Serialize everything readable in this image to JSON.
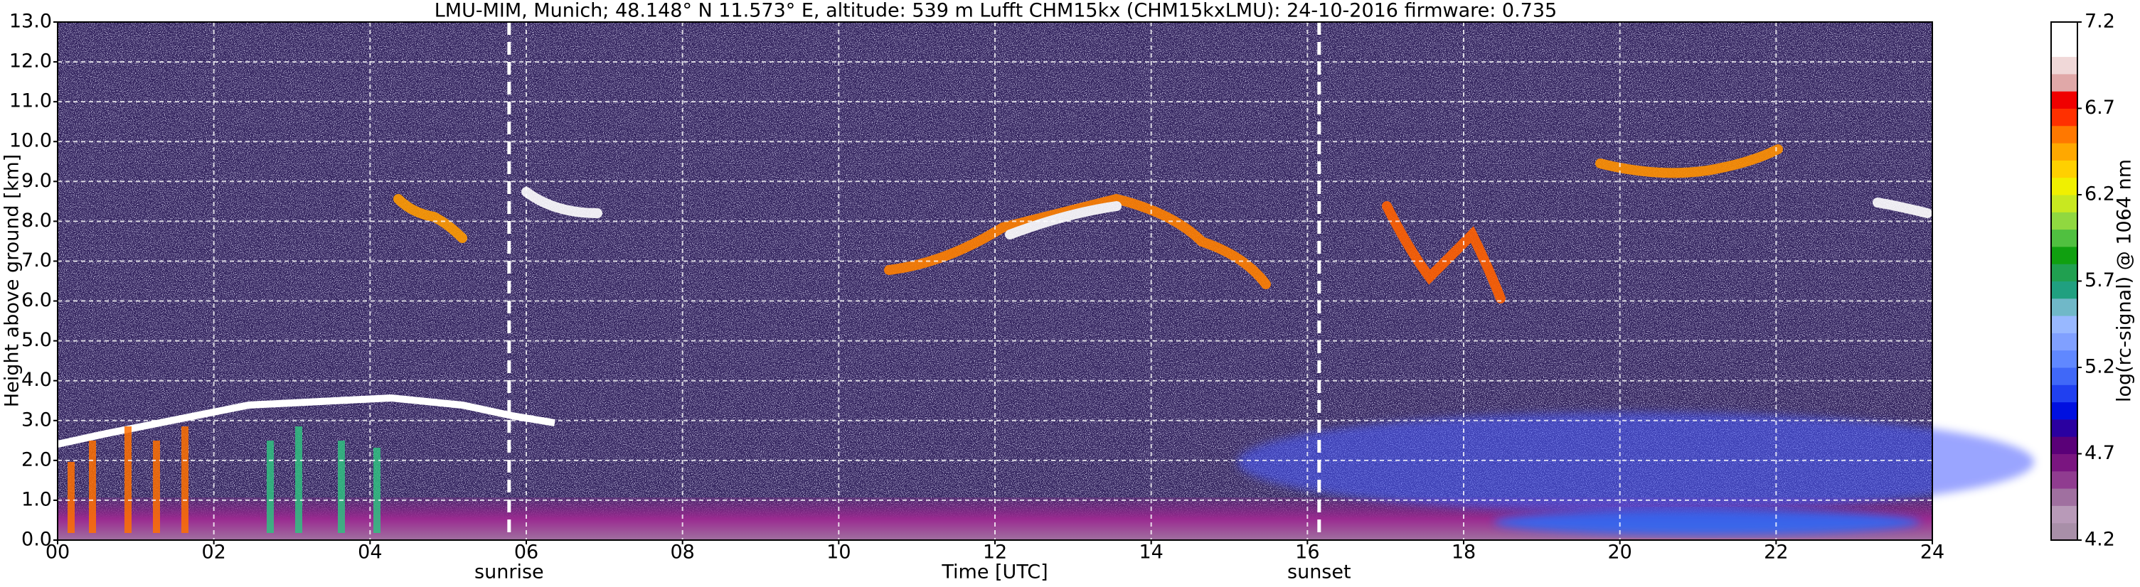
{
  "chart_data": {
    "type": "heatmap",
    "title": "LMU-MIM, Munich; 48.148° N 11.573° E, altitude: 539 m    Lufft CHM15kx (CHM15kxLMU): 24-10-2016    firmware: 0.735",
    "x_label": "Time [UTC]",
    "y_label": "Height above ground [km]",
    "xlim": [
      0,
      24
    ],
    "xticks": [
      {
        "value": 0,
        "label": "00"
      },
      {
        "value": 2,
        "label": "02"
      },
      {
        "value": 4,
        "label": "04"
      },
      {
        "value": 6,
        "label": "06"
      },
      {
        "value": 8,
        "label": "08"
      },
      {
        "value": 10,
        "label": "10"
      },
      {
        "value": 12,
        "label": "12"
      },
      {
        "value": 14,
        "label": "14"
      },
      {
        "value": 16,
        "label": "16"
      },
      {
        "value": 18,
        "label": "18"
      },
      {
        "value": 20,
        "label": "20"
      },
      {
        "value": 22,
        "label": "22"
      },
      {
        "value": 24,
        "label": "24"
      }
    ],
    "ylim": [
      0,
      13
    ],
    "yticks": [
      {
        "value": 0,
        "label": "0.0"
      },
      {
        "value": 1,
        "label": "1.0"
      },
      {
        "value": 2,
        "label": "2.0"
      },
      {
        "value": 3,
        "label": "3.0"
      },
      {
        "value": 4,
        "label": "4.0"
      },
      {
        "value": 5,
        "label": "5.0"
      },
      {
        "value": 6,
        "label": "6.0"
      },
      {
        "value": 7,
        "label": "7.0"
      },
      {
        "value": 8,
        "label": "8.0"
      },
      {
        "value": 9,
        "label": "9.0"
      },
      {
        "value": 10,
        "label": "10.0"
      },
      {
        "value": 11,
        "label": "11.0"
      },
      {
        "value": 12,
        "label": "12.0"
      },
      {
        "value": 13,
        "label": "13.0"
      }
    ],
    "grid": true,
    "annotations": [
      {
        "x": 5.78,
        "label": "sunrise"
      },
      {
        "x": 16.15,
        "label": "sunset"
      }
    ],
    "colorbar": {
      "label": "log(rc-signal) @ 1064 nm",
      "lim": [
        4.2,
        7.2
      ],
      "ticks": [
        4.2,
        4.7,
        5.2,
        5.7,
        6.2,
        6.7,
        7.2
      ],
      "colors": [
        "#a88fa8",
        "#b89ab8",
        "#a070a0",
        "#903c90",
        "#7a1580",
        "#5a0078",
        "#2a00a0",
        "#0010e0",
        "#2040f0",
        "#4068f8",
        "#6088ff",
        "#80a0ff",
        "#98b8ff",
        "#70b8c8",
        "#20a080",
        "#20a050",
        "#10a010",
        "#50c040",
        "#90d840",
        "#c8e820",
        "#f0f000",
        "#ffd000",
        "#ffa800",
        "#ff7800",
        "#ff3000",
        "#f00000",
        "#e0a8a8",
        "#f0d8d8",
        "#ffffff",
        "#ffffff"
      ]
    }
  }
}
